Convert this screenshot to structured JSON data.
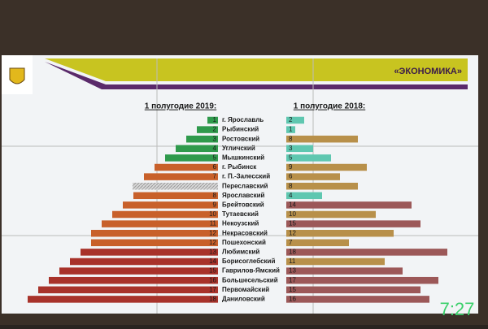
{
  "header": {
    "title": "«ЭКОНОМИКА»",
    "clock": "7:27"
  },
  "chart_data": {
    "type": "butterfly",
    "categories": [
      "г. Ярославль",
      "Рыбинский",
      "Ростовский",
      "Угличский",
      "Мышкинский",
      "г. Рыбинск",
      "г. П.-Залесский",
      "Переславский",
      "Ярославский",
      "Брейтовский",
      "Тутаевский",
      "Некоузский",
      "Некрасовский",
      "Пошехонский",
      "Любимский",
      "Борисоглебский",
      "Гаврилов-Ямский",
      "Большесельский",
      "Первомайский",
      "Даниловский"
    ],
    "series": [
      {
        "name": "1 полугодие 2019:",
        "values": [
          1,
          2,
          3,
          4,
          5,
          6,
          7,
          null,
          8,
          9,
          10,
          11,
          12,
          12,
          13,
          14,
          15,
          16,
          17,
          18
        ],
        "colors": [
          "#2f9a4c",
          "#2f9a4c",
          "#2f9a4c",
          "#2f9a4c",
          "#2f9a4c",
          "#c8602a",
          "#c8602a",
          "#c8c8c8",
          "#c8602a",
          "#c8602a",
          "#c8602a",
          "#c8602a",
          "#c8602a",
          "#c8602a",
          "#a8322a",
          "#a8322a",
          "#a8322a",
          "#a8322a",
          "#a8322a",
          "#a8322a"
        ]
      },
      {
        "name": "1 полугодие 2018:",
        "values": [
          2,
          1,
          8,
          3,
          5,
          9,
          6,
          8,
          4,
          14,
          10,
          15,
          12,
          7,
          18,
          11,
          13,
          17,
          15,
          16
        ],
        "colors": [
          "#5fc7b0",
          "#5fc7b0",
          "#b8904a",
          "#5fc7b0",
          "#5fc7b0",
          "#b8904a",
          "#b8904a",
          "#b8904a",
          "#5fc7b0",
          "#9c5858",
          "#b8904a",
          "#9c5858",
          "#b8904a",
          "#b8904a",
          "#9c5858",
          "#b8904a",
          "#9c5858",
          "#9c5858",
          "#9c5858",
          "#9c5858"
        ]
      }
    ]
  }
}
